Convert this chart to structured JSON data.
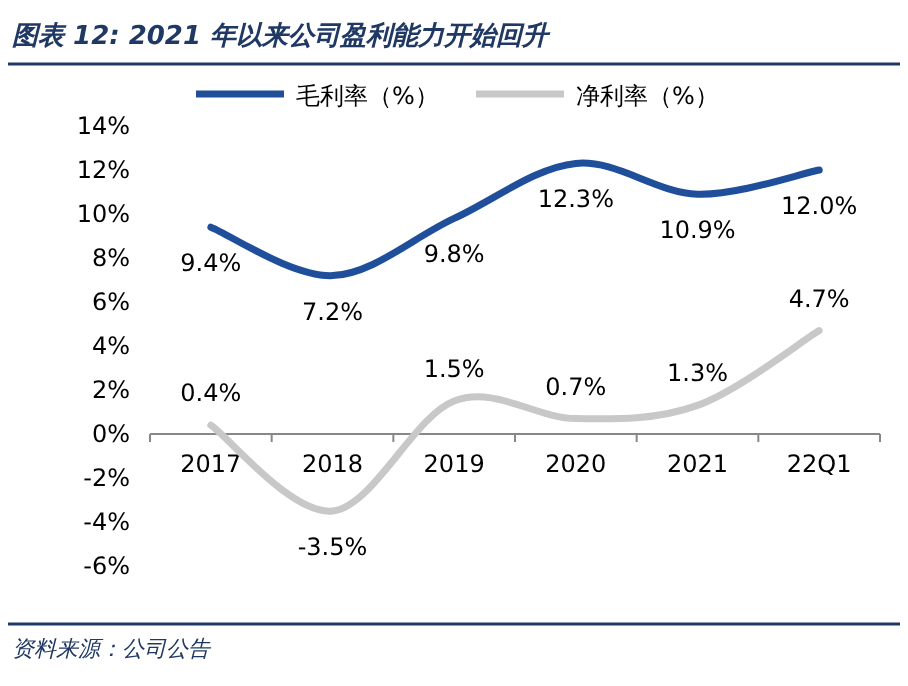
{
  "chart_data": {
    "type": "line",
    "title": "图表 12:  2021 年以来公司盈利能力开始回升",
    "categories": [
      "2017",
      "2018",
      "2019",
      "2020",
      "2021",
      "22Q1"
    ],
    "series": [
      {
        "name": "毛利率（%）",
        "color": "#1f4e9a",
        "values": [
          9.4,
          7.2,
          9.8,
          12.3,
          10.9,
          12.0
        ],
        "value_labels": [
          "9.4%",
          "7.2%",
          "9.8%",
          "12.3%",
          "10.9%",
          "12.0%"
        ]
      },
      {
        "name": "净利率（%）",
        "color": "#c8c8c8",
        "values": [
          0.4,
          -3.5,
          1.5,
          0.7,
          1.3,
          4.7
        ],
        "value_labels": [
          "0.4%",
          "-3.5%",
          "1.5%",
          "0.7%",
          "1.3%",
          "4.7%"
        ]
      }
    ],
    "ylim": [
      -6,
      14
    ],
    "yticks": [
      {
        "value": 14,
        "label": "14%"
      },
      {
        "value": 12,
        "label": "12%"
      },
      {
        "value": 10,
        "label": "10%"
      },
      {
        "value": 8,
        "label": "8%"
      },
      {
        "value": 6,
        "label": "6%"
      },
      {
        "value": 4,
        "label": "4%"
      },
      {
        "value": 2,
        "label": "2%"
      },
      {
        "value": 0,
        "label": "0%"
      },
      {
        "value": -2,
        "label": "-2%"
      },
      {
        "value": -4,
        "label": "-4%"
      },
      {
        "value": -6,
        "label": "-6%"
      }
    ],
    "legend": "top",
    "grid": false,
    "annotations": [
      "资料来源：公司公告"
    ]
  }
}
